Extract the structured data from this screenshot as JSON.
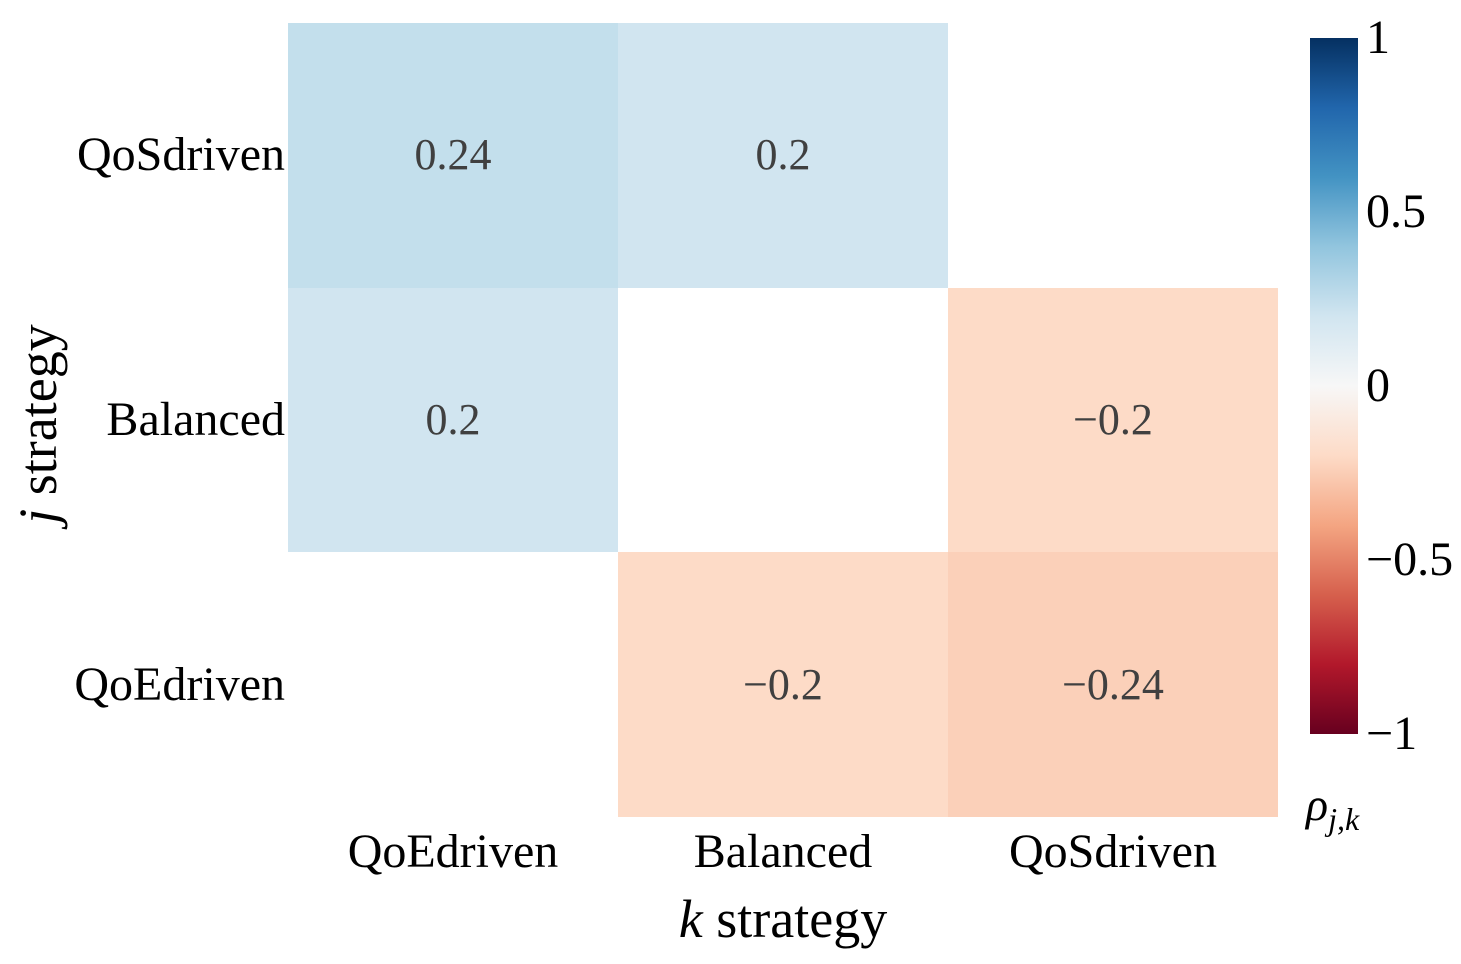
{
  "chart_data": {
    "type": "heatmap",
    "colormap": "RdBu",
    "x_categories": [
      "QoEdriven",
      "Balanced",
      "QoSdriven"
    ],
    "y_categories": [
      "QoSdriven",
      "Balanced",
      "QoEdriven"
    ],
    "values": [
      [
        0.24,
        0.2,
        null
      ],
      [
        0.2,
        null,
        -0.2
      ],
      [
        null,
        -0.2,
        -0.24
      ]
    ],
    "annotations": [
      [
        "0.24",
        "0.2",
        ""
      ],
      [
        "0.2",
        "",
        "−0.2"
      ],
      [
        "",
        "−0.2",
        "−0.24"
      ]
    ],
    "cell_colors": [
      [
        "#c3dfec",
        "#d1e5f0",
        null
      ],
      [
        "#d1e5f0",
        null,
        "#fddbc7"
      ],
      [
        null,
        "#fddbc7",
        "#fbd0b9"
      ]
    ],
    "annotation_color": "#404040",
    "xlabel_italic": "k",
    "xlabel_rest": " strategy",
    "ylabel_italic": "j",
    "ylabel_rest": " strategy",
    "grid": false,
    "legend": false,
    "colorbar": {
      "label_main": "ρ",
      "label_sub": "j,k",
      "range": [
        -1,
        1
      ],
      "ticks": [
        "1",
        "0.5",
        "0",
        "−0.5",
        "−1"
      ],
      "tick_values": [
        1,
        0.5,
        0,
        -0.5,
        -1
      ],
      "gradient_stops_top_to_bottom": [
        "#053061",
        "#2166ac",
        "#4393c3",
        "#92c5de",
        "#d1e5f0",
        "#f7f7f7",
        "#fddbc7",
        "#f4a582",
        "#d6604d",
        "#b2182b",
        "#67001f"
      ]
    }
  }
}
